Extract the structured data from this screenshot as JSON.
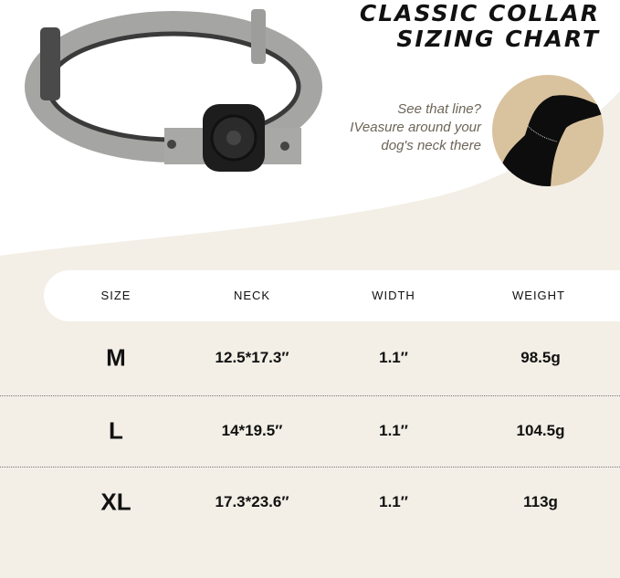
{
  "title": {
    "line1": "CLASSIC COLLAR",
    "line2": "SIZING CHART"
  },
  "hint": {
    "line1": "See that line?",
    "line2": "IVeasure around your",
    "line3": "dog's neck there"
  },
  "colors": {
    "background": "#f3efe6",
    "circle": "#d9c29e",
    "dog": "#0d0d0d",
    "collar": "#a9a9a7"
  },
  "table": {
    "headers": [
      "SIZE",
      "NECK",
      "WIDTH",
      "WEIGHT"
    ],
    "rows": [
      {
        "size": "M",
        "neck": "12.5*17.3″",
        "width": "1.1″",
        "weight": "98.5g"
      },
      {
        "size": "L",
        "neck": "14*19.5″",
        "width": "1.1″",
        "weight": "104.5g"
      },
      {
        "size": "XL",
        "neck": "17.3*23.6″",
        "width": "1.1″",
        "weight": "113g"
      }
    ]
  }
}
